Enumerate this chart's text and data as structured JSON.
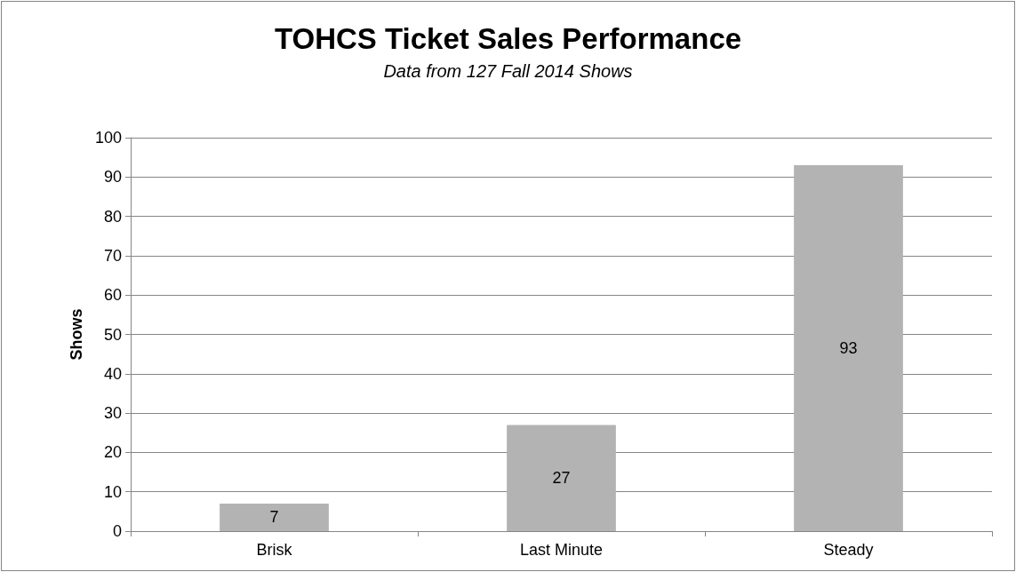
{
  "chart_data": {
    "type": "bar",
    "title": "TOHCS Ticket Sales Performance",
    "subtitle": "Data from 127 Fall 2014 Shows",
    "ylabel": "Shows",
    "categories": [
      "Brisk",
      "Last Minute",
      "Steady"
    ],
    "values": [
      7,
      27,
      93
    ],
    "color": "#b3b3b3",
    "ylim": [
      0,
      100
    ],
    "yticks": [
      0,
      10,
      20,
      30,
      40,
      50,
      60,
      70,
      80,
      90,
      100
    ],
    "grid": "y",
    "data_labels": true
  }
}
